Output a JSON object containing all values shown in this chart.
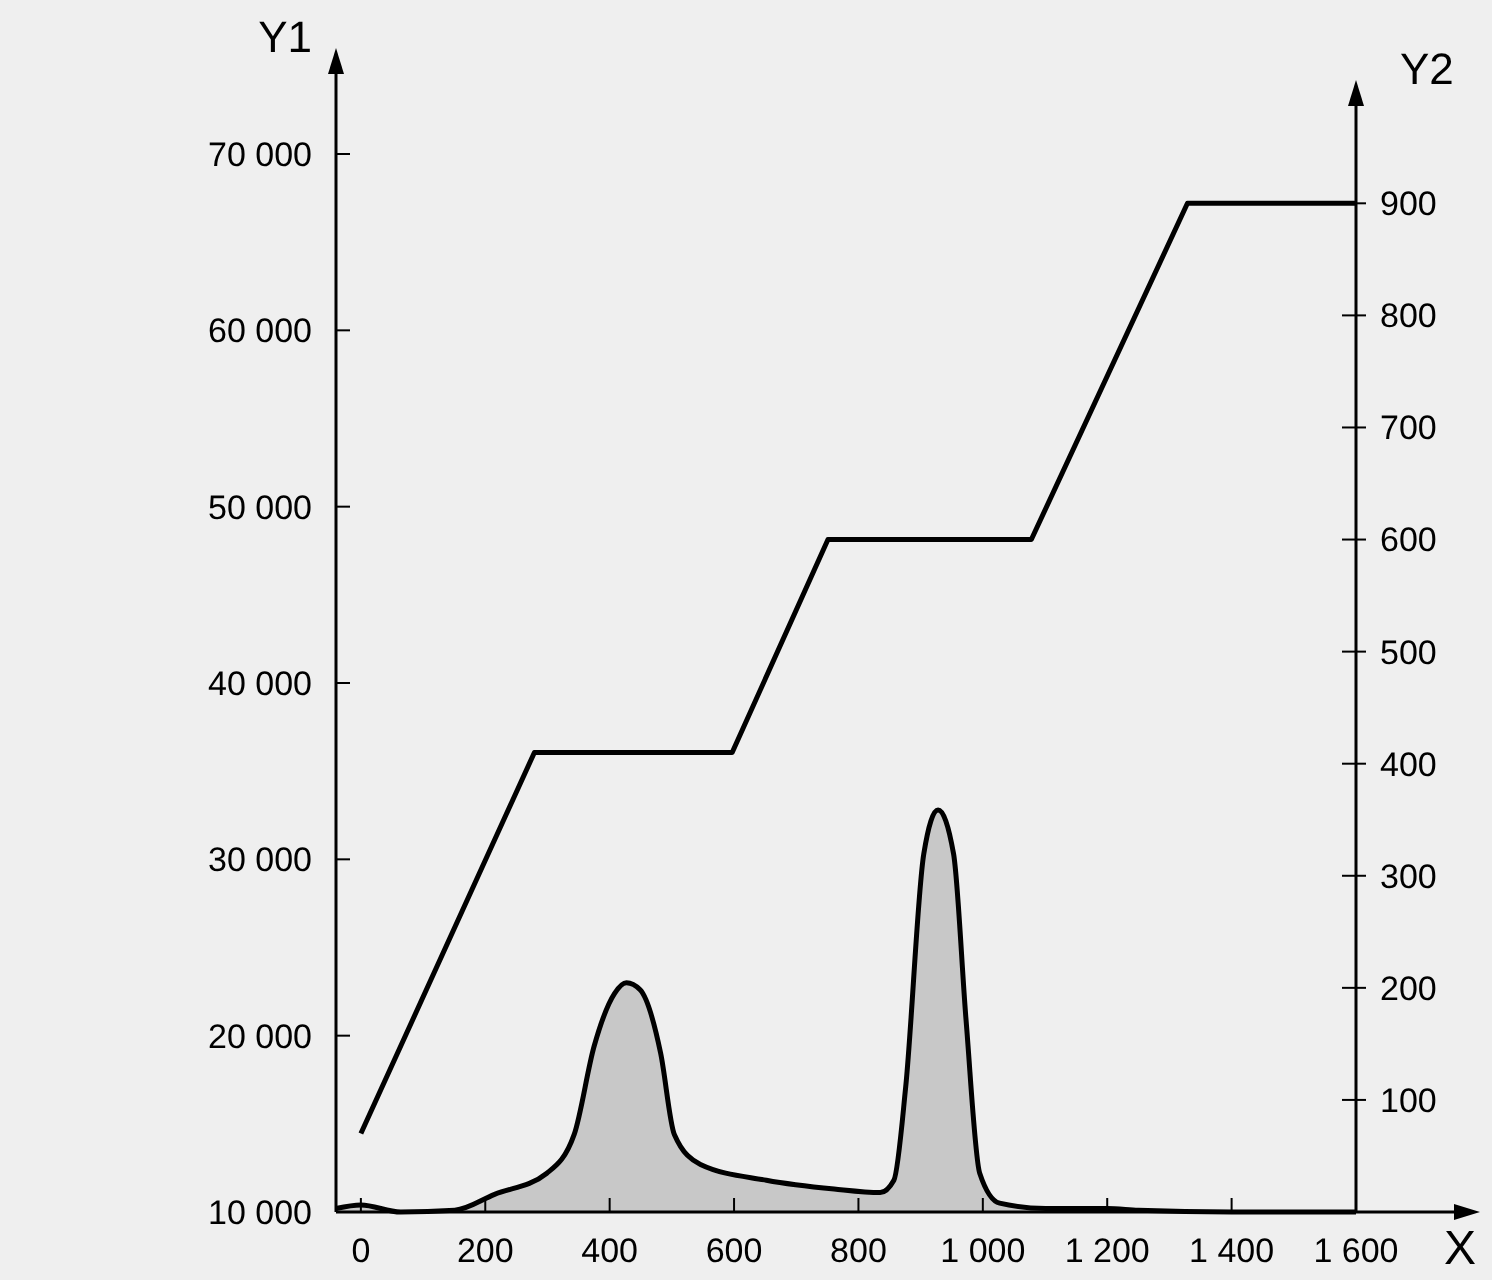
{
  "chart_data": {
    "type": "area",
    "xlabel": "X",
    "ylabel": "Y1",
    "y2label": "Y2",
    "xlim": [
      -40,
      1600
    ],
    "xticks": [
      0,
      200,
      400,
      600,
      800,
      {
        "value": 1000,
        "label": "1 000"
      },
      {
        "value": 1200,
        "label": "1 200"
      },
      {
        "value": 1400,
        "label": "1 400"
      },
      {
        "value": 1600,
        "label": "1 600"
      }
    ],
    "ylim": [
      10000,
      70000
    ],
    "yticks": [
      {
        "value": 10000,
        "label": "10 000"
      },
      {
        "value": 20000,
        "label": "20 000"
      },
      {
        "value": 30000,
        "label": "30 000"
      },
      {
        "value": 40000,
        "label": "40 000"
      },
      {
        "value": 50000,
        "label": "50 000"
      },
      {
        "value": 60000,
        "label": "60 000"
      },
      {
        "value": 70000,
        "label": "70 000"
      }
    ],
    "y2lim": [
      0,
      944
    ],
    "y2ticks": [
      100,
      200,
      300,
      400,
      500,
      600,
      700,
      800,
      900
    ],
    "grid": false,
    "series": [
      {
        "color": "#c8c8c8",
        "x": [
          -40,
          0,
          64,
          151,
          215,
          299,
          343,
          375,
          408,
          427,
          449,
          482,
          504,
          546,
          652,
          761,
          835,
          857,
          876,
          905,
          928,
          953,
          973,
          995,
          1027,
          1101,
          1200,
          1250,
          1400,
          1600
        ],
        "values": [
          10200,
          10400,
          10000,
          10100,
          11000,
          12200,
          14400,
          19400,
          22400,
          23000,
          22600,
          19000,
          14400,
          12700,
          11800,
          11300,
          11100,
          11800,
          17100,
          30300,
          32800,
          30300,
          20900,
          12200,
          10500,
          10200,
          10200,
          10100,
          10000,
          10000
        ]
      },
      {
        "type": "line",
        "axis": "y2",
        "color": "#000000",
        "x": [
          0,
          279,
          597,
          751,
          1078,
          1329,
          1600
        ],
        "values": [
          70,
          410,
          410,
          600,
          600,
          900,
          900
        ]
      }
    ]
  }
}
